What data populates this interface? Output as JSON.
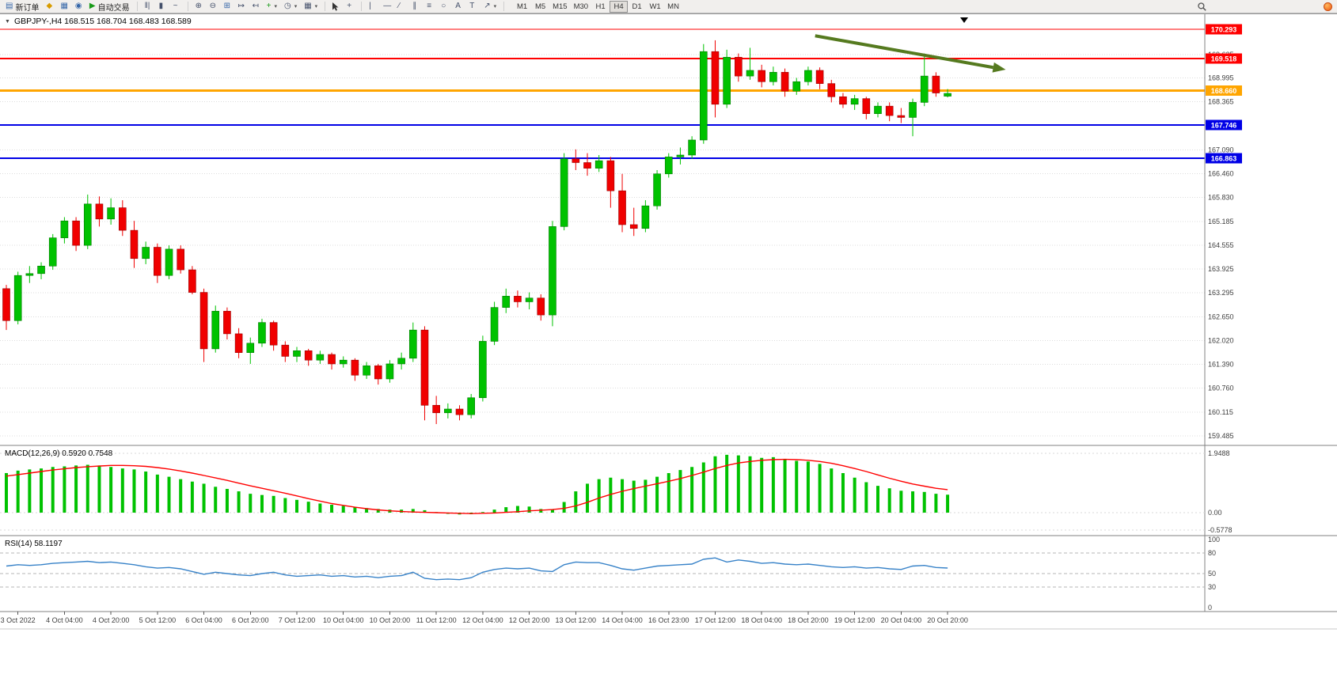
{
  "toolbar": {
    "new_order": "新订单",
    "autotrade": "自动交易",
    "timeframes": [
      "M1",
      "M5",
      "M15",
      "M30",
      "H1",
      "H4",
      "D1",
      "W1",
      "MN"
    ],
    "active_timeframe": "H4"
  },
  "chart": {
    "header": "GBPJPY-,H4  168.515 168.704 168.483 168.589",
    "colors": {
      "bull": "#00c200",
      "bull_border": "#007a00",
      "bear": "#f00000",
      "bear_border": "#990000",
      "grid": "#dcdcdc",
      "axis_text": "#3e3e3e",
      "macd_hist": "#00c200",
      "macd_signal": "#ff0000",
      "rsi_line": "#3782c8",
      "arrow": "#557a1f",
      "separator": "#808080"
    }
  },
  "chart_data": {
    "type": "candlestick",
    "symbol": "GBPJPY-",
    "timeframe": "H4",
    "current_ohlc": {
      "open": "168.515",
      "high": "168.704",
      "low": "168.483",
      "close": "168.589"
    },
    "price_ticks": [
      "169.625",
      "168.995",
      "168.365",
      "167.090",
      "166.460",
      "165.830",
      "165.185",
      "164.555",
      "163.925",
      "163.295",
      "162.650",
      "162.020",
      "161.390",
      "160.760",
      "160.115",
      "159.485"
    ],
    "levels": [
      {
        "price": 170.293,
        "color": "#ff0000",
        "width": 1,
        "label": "170.293"
      },
      {
        "price": 169.518,
        "color": "#ff0000",
        "width": 2,
        "label": "169.518"
      },
      {
        "price": 168.66,
        "color": "#ffa500",
        "width": 3,
        "label": "168.660"
      },
      {
        "price": 167.746,
        "color": "#0000e6",
        "width": 2,
        "label": "167.746"
      },
      {
        "price": 166.863,
        "color": "#0000e6",
        "width": 2,
        "label": "166.863"
      }
    ],
    "time_labels": [
      {
        "i": 1,
        "t": "3 Oct 2022"
      },
      {
        "i": 5,
        "t": "4 Oct 04:00"
      },
      {
        "i": 9,
        "t": "4 Oct 20:00"
      },
      {
        "i": 13,
        "t": "5 Oct 12:00"
      },
      {
        "i": 17,
        "t": "6 Oct 04:00"
      },
      {
        "i": 21,
        "t": "6 Oct 20:00"
      },
      {
        "i": 25,
        "t": "7 Oct 12:00"
      },
      {
        "i": 29,
        "t": "10 Oct 04:00"
      },
      {
        "i": 33,
        "t": "10 Oct 20:00"
      },
      {
        "i": 37,
        "t": "11 Oct 12:00"
      },
      {
        "i": 41,
        "t": "12 Oct 04:00"
      },
      {
        "i": 45,
        "t": "12 Oct 20:00"
      },
      {
        "i": 49,
        "t": "13 Oct 12:00"
      },
      {
        "i": 53,
        "t": "14 Oct 04:00"
      },
      {
        "i": 57,
        "t": "16 Oct 23:00"
      },
      {
        "i": 61,
        "t": "17 Oct 12:00"
      },
      {
        "i": 65,
        "t": "18 Oct 04:00"
      },
      {
        "i": 69,
        "t": "18 Oct 20:00"
      },
      {
        "i": 73,
        "t": "19 Oct 12:00"
      },
      {
        "i": 77,
        "t": "20 Oct 04:00"
      },
      {
        "i": 81,
        "t": "20 Oct 20:00"
      }
    ],
    "candles": [
      [
        163.4,
        163.5,
        162.3,
        162.55
      ],
      [
        162.55,
        163.85,
        162.45,
        163.75
      ],
      [
        163.75,
        164.0,
        163.55,
        163.8
      ],
      [
        163.8,
        164.1,
        163.65,
        164.0
      ],
      [
        164.0,
        164.85,
        163.9,
        164.75
      ],
      [
        164.75,
        165.3,
        164.6,
        165.2
      ],
      [
        165.2,
        165.3,
        164.4,
        164.55
      ],
      [
        164.55,
        165.9,
        164.45,
        165.65
      ],
      [
        165.65,
        165.85,
        165.05,
        165.25
      ],
      [
        165.25,
        165.8,
        165.1,
        165.55
      ],
      [
        165.55,
        165.75,
        164.8,
        164.95
      ],
      [
        164.95,
        165.2,
        163.95,
        164.2
      ],
      [
        164.2,
        164.65,
        164.05,
        164.5
      ],
      [
        164.5,
        164.6,
        163.55,
        163.75
      ],
      [
        163.75,
        164.55,
        163.65,
        164.45
      ],
      [
        164.45,
        164.55,
        163.8,
        163.9
      ],
      [
        163.9,
        164.0,
        163.25,
        163.3
      ],
      [
        163.3,
        163.4,
        161.45,
        161.8
      ],
      [
        161.8,
        162.95,
        161.7,
        162.8
      ],
      [
        162.8,
        162.9,
        162.05,
        162.2
      ],
      [
        162.2,
        162.35,
        161.55,
        161.7
      ],
      [
        161.7,
        162.1,
        161.4,
        161.95
      ],
      [
        161.95,
        162.6,
        161.85,
        162.5
      ],
      [
        162.5,
        162.55,
        161.75,
        161.9
      ],
      [
        161.9,
        162.0,
        161.45,
        161.6
      ],
      [
        161.6,
        161.85,
        161.45,
        161.75
      ],
      [
        161.75,
        161.8,
        161.35,
        161.5
      ],
      [
        161.5,
        161.75,
        161.4,
        161.65
      ],
      [
        161.65,
        161.7,
        161.25,
        161.4
      ],
      [
        161.4,
        161.6,
        161.3,
        161.5
      ],
      [
        161.5,
        161.55,
        160.95,
        161.1
      ],
      [
        161.1,
        161.45,
        161.0,
        161.35
      ],
      [
        161.35,
        161.4,
        160.85,
        161.0
      ],
      [
        161.0,
        161.5,
        160.9,
        161.4
      ],
      [
        161.4,
        161.7,
        161.25,
        161.55
      ],
      [
        161.55,
        162.5,
        161.45,
        162.3
      ],
      [
        162.3,
        162.4,
        159.9,
        160.3
      ],
      [
        160.3,
        160.55,
        159.8,
        160.1
      ],
      [
        160.1,
        160.35,
        159.95,
        160.2
      ],
      [
        160.2,
        160.3,
        159.9,
        160.05
      ],
      [
        160.05,
        160.6,
        159.95,
        160.5
      ],
      [
        160.5,
        162.15,
        160.4,
        162.0
      ],
      [
        162.0,
        163.05,
        161.9,
        162.9
      ],
      [
        162.9,
        163.4,
        162.75,
        163.2
      ],
      [
        163.2,
        163.35,
        162.9,
        163.05
      ],
      [
        163.05,
        163.3,
        162.85,
        163.15
      ],
      [
        163.15,
        163.25,
        162.55,
        162.7
      ],
      [
        162.7,
        165.2,
        162.4,
        165.05
      ],
      [
        165.05,
        167.0,
        164.95,
        166.85
      ],
      [
        166.85,
        167.1,
        166.55,
        166.75
      ],
      [
        166.75,
        167.0,
        166.4,
        166.6
      ],
      [
        166.6,
        166.95,
        166.5,
        166.8
      ],
      [
        166.8,
        166.9,
        165.55,
        166.0
      ],
      [
        166.0,
        166.45,
        164.9,
        165.1
      ],
      [
        165.1,
        165.55,
        164.8,
        165.0
      ],
      [
        165.0,
        165.75,
        164.9,
        165.6
      ],
      [
        165.6,
        166.55,
        165.5,
        166.45
      ],
      [
        166.45,
        167.0,
        166.35,
        166.9
      ],
      [
        166.9,
        167.15,
        166.7,
        166.95
      ],
      [
        166.95,
        167.45,
        166.85,
        167.35
      ],
      [
        167.35,
        169.9,
        167.25,
        169.7
      ],
      [
        169.7,
        170.0,
        167.95,
        168.3
      ],
      [
        168.3,
        169.75,
        168.2,
        169.55
      ],
      [
        169.55,
        169.65,
        168.9,
        169.05
      ],
      [
        169.05,
        169.8,
        168.95,
        169.2
      ],
      [
        169.2,
        169.35,
        168.75,
        168.9
      ],
      [
        168.9,
        169.3,
        168.8,
        169.15
      ],
      [
        169.15,
        169.25,
        168.5,
        168.65
      ],
      [
        168.65,
        169.0,
        168.55,
        168.9
      ],
      [
        168.9,
        169.3,
        168.8,
        169.2
      ],
      [
        169.2,
        169.28,
        168.7,
        168.85
      ],
      [
        168.85,
        168.95,
        168.35,
        168.5
      ],
      [
        168.5,
        168.6,
        168.2,
        168.3
      ],
      [
        168.3,
        168.55,
        168.15,
        168.45
      ],
      [
        168.45,
        168.5,
        167.9,
        168.05
      ],
      [
        168.05,
        168.35,
        167.95,
        168.25
      ],
      [
        168.25,
        168.35,
        167.85,
        168.0
      ],
      [
        168.0,
        168.2,
        167.8,
        167.95
      ],
      [
        167.95,
        168.45,
        167.45,
        168.35
      ],
      [
        168.35,
        169.65,
        168.25,
        169.05
      ],
      [
        169.05,
        169.15,
        168.5,
        168.6
      ],
      [
        168.515,
        168.704,
        168.483,
        168.589
      ]
    ],
    "macd": {
      "label": "MACD(12,26,9) 0.5920 0.7548",
      "ticks": [
        "1.9488",
        "0.00",
        "-0.5778"
      ],
      "histogram": [
        1.3,
        1.38,
        1.42,
        1.45,
        1.5,
        1.52,
        1.55,
        1.57,
        1.55,
        1.5,
        1.45,
        1.42,
        1.35,
        1.25,
        1.18,
        1.1,
        1.02,
        0.95,
        0.85,
        0.78,
        0.7,
        0.62,
        0.58,
        0.55,
        0.48,
        0.42,
        0.36,
        0.3,
        0.26,
        0.22,
        0.18,
        0.15,
        0.12,
        0.1,
        0.1,
        0.12,
        0.08,
        0.02,
        -0.04,
        -0.06,
        -0.05,
        0.02,
        0.1,
        0.18,
        0.22,
        0.2,
        0.12,
        0.1,
        0.35,
        0.7,
        0.95,
        1.1,
        1.15,
        1.1,
        1.05,
        1.08,
        1.18,
        1.3,
        1.4,
        1.5,
        1.65,
        1.85,
        1.9,
        1.88,
        1.85,
        1.8,
        1.82,
        1.75,
        1.7,
        1.68,
        1.6,
        1.45,
        1.3,
        1.15,
        1.0,
        0.88,
        0.8,
        0.72,
        0.7,
        0.68,
        0.62,
        0.59
      ],
      "signal": [
        1.2,
        1.25,
        1.3,
        1.35,
        1.4,
        1.44,
        1.48,
        1.51,
        1.53,
        1.55,
        1.55,
        1.54,
        1.52,
        1.48,
        1.43,
        1.37,
        1.3,
        1.22,
        1.14,
        1.06,
        0.97,
        0.88,
        0.8,
        0.72,
        0.64,
        0.55,
        0.46,
        0.38,
        0.3,
        0.24,
        0.18,
        0.13,
        0.09,
        0.06,
        0.04,
        0.02,
        0.01,
        0.0,
        -0.01,
        -0.02,
        -0.03,
        -0.02,
        -0.01,
        0.01,
        0.03,
        0.06,
        0.08,
        0.1,
        0.14,
        0.22,
        0.34,
        0.48,
        0.6,
        0.7,
        0.79,
        0.87,
        0.95,
        1.03,
        1.12,
        1.22,
        1.33,
        1.45,
        1.55,
        1.63,
        1.68,
        1.72,
        1.74,
        1.75,
        1.74,
        1.72,
        1.68,
        1.62,
        1.54,
        1.45,
        1.35,
        1.24,
        1.13,
        1.03,
        0.94,
        0.87,
        0.8,
        0.755
      ]
    },
    "rsi": {
      "label": "RSI(14) 58.1197",
      "ticks": [
        "100",
        "80",
        "50",
        "30",
        "0"
      ],
      "dashed_levels": [
        80,
        50,
        30
      ],
      "values": [
        61,
        63,
        62,
        63,
        65,
        66,
        67,
        68,
        66,
        67,
        65,
        63,
        60,
        58,
        59,
        57,
        53,
        49,
        52,
        50,
        48,
        47,
        50,
        52,
        48,
        46,
        47,
        48,
        46,
        47,
        45,
        46,
        44,
        46,
        47,
        52,
        43,
        41,
        42,
        41,
        44,
        52,
        56,
        58,
        57,
        58,
        54,
        53,
        63,
        67,
        66,
        66,
        62,
        57,
        55,
        58,
        61,
        62,
        63,
        64,
        71,
        73,
        67,
        70,
        68,
        65,
        66,
        64,
        63,
        64,
        62,
        60,
        59,
        60,
        58,
        59,
        57,
        56,
        61,
        62,
        59,
        58.12
      ]
    },
    "annotation_arrow": {
      "from": {
        "index": 69.6,
        "price": 170.12
      },
      "to": {
        "index": 86,
        "price": 169.22
      }
    }
  }
}
